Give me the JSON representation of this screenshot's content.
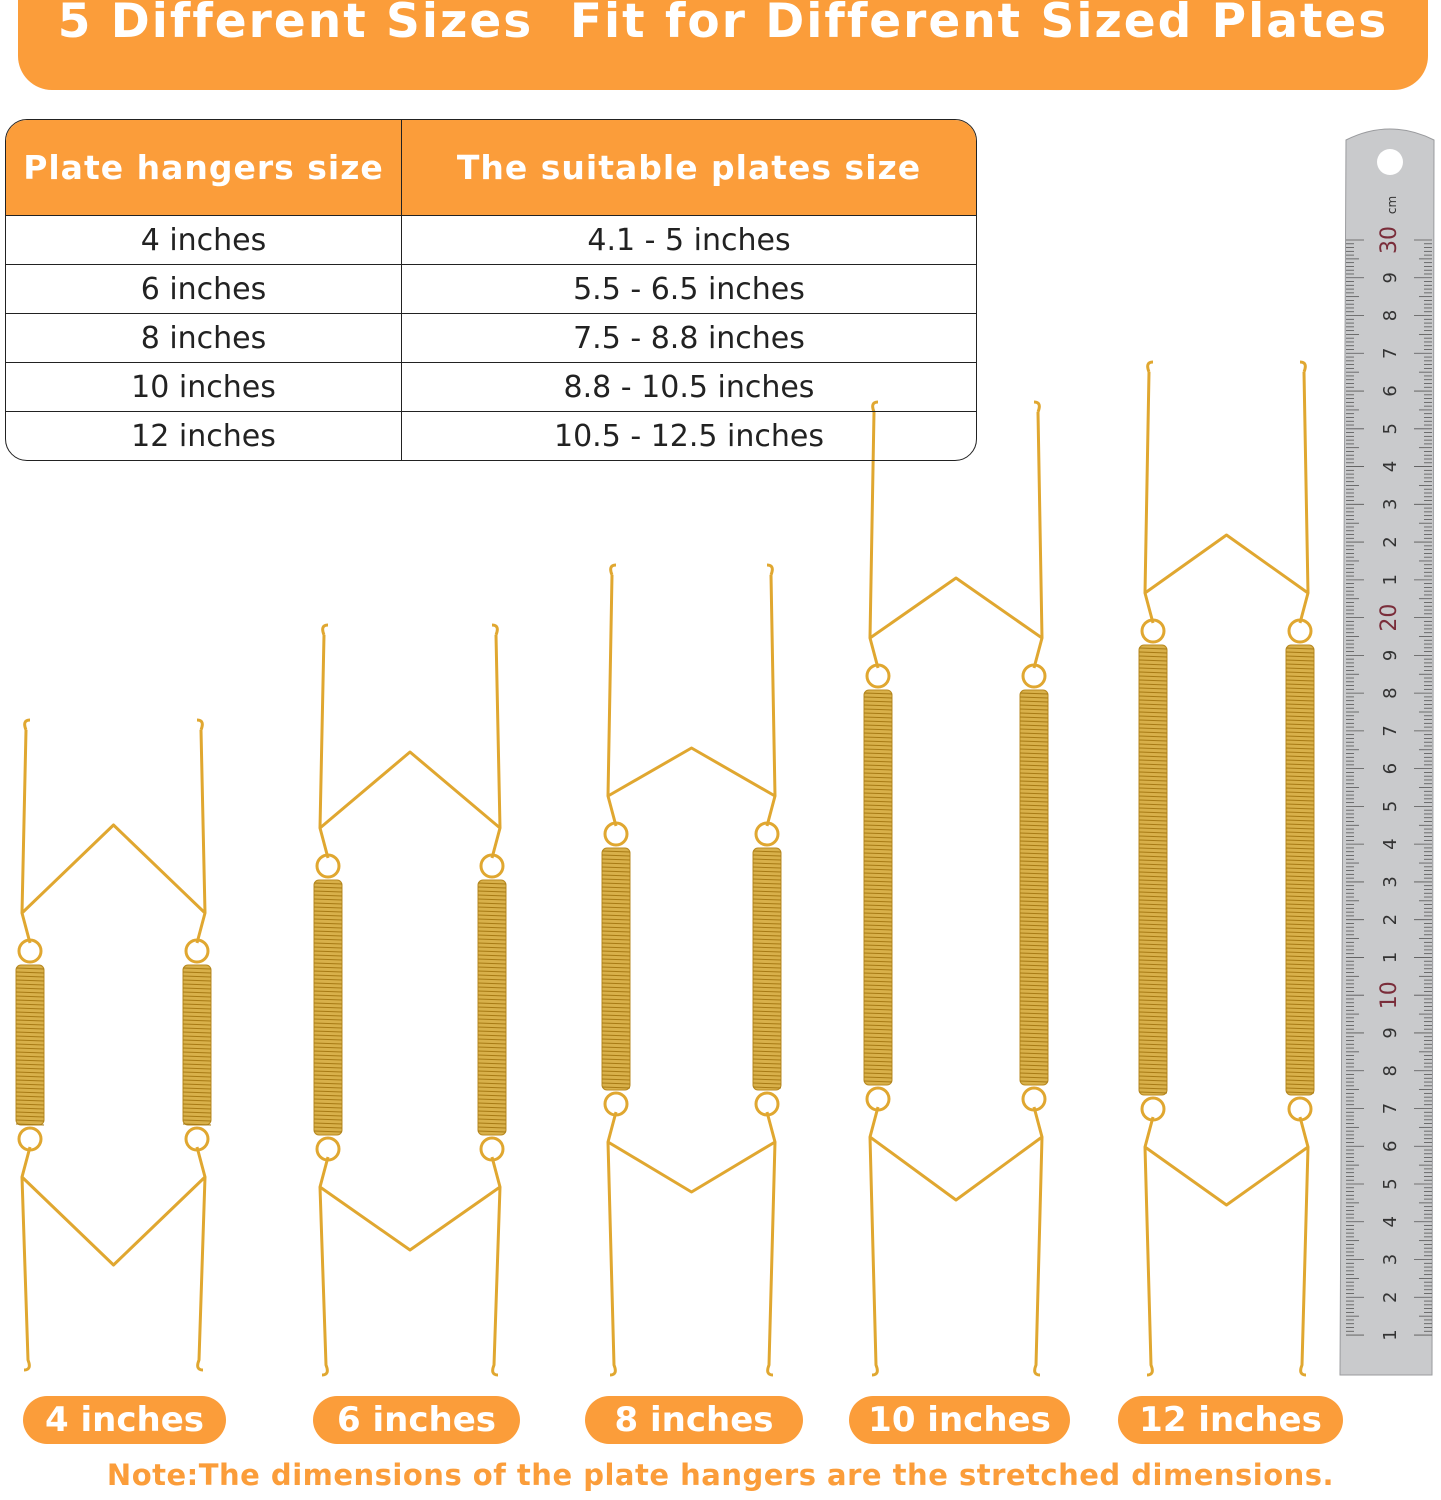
{
  "banner": {
    "title": "5 Different Sizes  Fit for Different Sized Plates"
  },
  "colors": {
    "accent": "#fb9d3a",
    "wire": "#e0a730",
    "spring": "#d8b04a",
    "ruler": "#c9cacc"
  },
  "table": {
    "headers": [
      "Plate hangers size",
      "The suitable plates size"
    ],
    "rows": [
      [
        "4 inches",
        "4.1 - 5 inches"
      ],
      [
        "6 inches",
        "5.5 - 6.5 inches"
      ],
      [
        "8 inches",
        "7.5 - 8.8 inches"
      ],
      [
        "10 inches",
        "8.8 - 10.5 inches"
      ],
      [
        "12 inches",
        "10.5 - 12.5 inches"
      ]
    ]
  },
  "hangers": [
    {
      "label": "4 inches"
    },
    {
      "label": "6 inches"
    },
    {
      "label": "8 inches"
    },
    {
      "label": "10 inches"
    },
    {
      "label": "12 inches"
    }
  ],
  "ruler": {
    "unit": "cm",
    "labels": [
      "30",
      "9",
      "8",
      "7",
      "6",
      "5",
      "4",
      "3",
      "2",
      "1",
      "20",
      "9",
      "8",
      "7",
      "6",
      "5",
      "4",
      "3",
      "2",
      "1",
      "10",
      "9",
      "8",
      "7",
      "6",
      "5",
      "4",
      "3",
      "2",
      "1"
    ]
  },
  "note": "Note:The dimensions of the plate hangers are the stretched dimensions."
}
